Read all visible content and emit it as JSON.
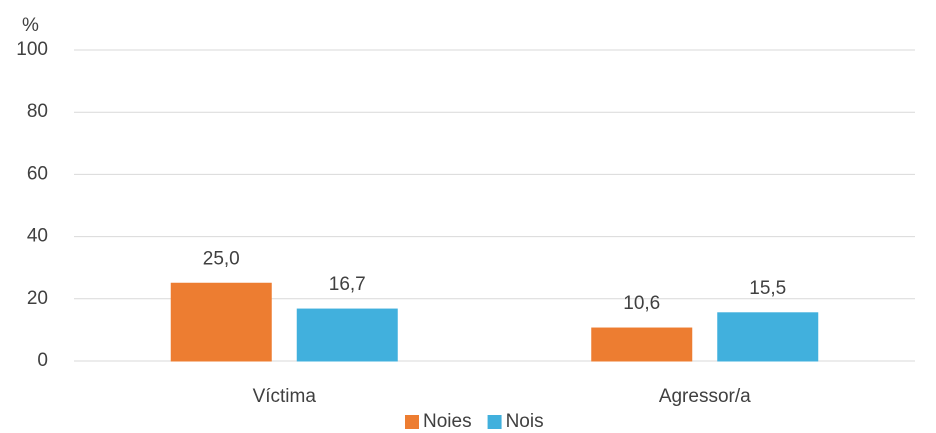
{
  "chart_data": {
    "type": "bar",
    "ylabel": "%",
    "categories": [
      "Víctima",
      "Agressor/a"
    ],
    "series": [
      {
        "name": "Noies",
        "color": "#ed7d31",
        "values": [
          25,
          10.6
        ],
        "value_labels": [
          "25,0",
          "10,6"
        ]
      },
      {
        "name": "Nois",
        "color": "#41b0dd",
        "values": [
          16.7,
          15.5
        ],
        "value_labels": [
          "16,7",
          "15,5"
        ]
      }
    ],
    "ylim": [
      0,
      100
    ],
    "yticks": [
      0,
      20,
      40,
      60,
      80,
      100
    ],
    "grid": true,
    "legend": "bottom"
  }
}
